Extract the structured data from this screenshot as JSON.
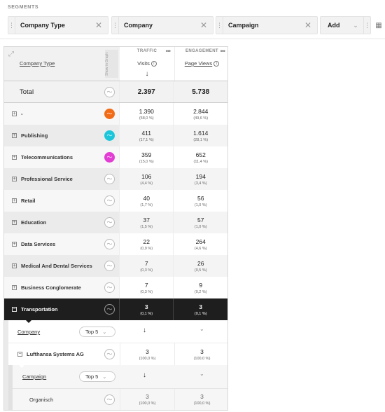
{
  "segments": {
    "title": "SEGMENTS",
    "items": [
      {
        "label": "Company Type"
      },
      {
        "label": "Company"
      },
      {
        "label": "Campaign"
      }
    ],
    "add_label": "Add"
  },
  "table": {
    "dimension_header": "Company Type",
    "vertical_label": "Show in Graph",
    "metrics": [
      {
        "group": "TRAFFIC",
        "name": "Visits"
      },
      {
        "group": "ENGAGEMENT",
        "name": "Page Views"
      }
    ],
    "total": {
      "label": "Total",
      "visits": "2.397",
      "pageviews": "5.738"
    },
    "rows": [
      {
        "label": "-",
        "visits": "1.390",
        "visits_pct": "(58,0 %)",
        "pv": "2.844",
        "pv_pct": "(49,6 %)",
        "color": "#f26b17"
      },
      {
        "label": "Publishing",
        "visits": "411",
        "visits_pct": "(17,1 %)",
        "pv": "1.614",
        "pv_pct": "(28,1 %)",
        "color": "#1cc6da"
      },
      {
        "label": "Telecommunications",
        "visits": "359",
        "visits_pct": "(15,0 %)",
        "pv": "652",
        "pv_pct": "(11,4 %)",
        "color": "#e23ed4"
      },
      {
        "label": "Professional Service",
        "visits": "106",
        "visits_pct": "(4,4 %)",
        "pv": "194",
        "pv_pct": "(3,4 %)"
      },
      {
        "label": "Retail",
        "visits": "40",
        "visits_pct": "(1,7 %)",
        "pv": "56",
        "pv_pct": "(1,0 %)"
      },
      {
        "label": "Education",
        "visits": "37",
        "visits_pct": "(1,5 %)",
        "pv": "57",
        "pv_pct": "(1,0 %)"
      },
      {
        "label": "Data Services",
        "visits": "22",
        "visits_pct": "(0,9 %)",
        "pv": "264",
        "pv_pct": "(4,6 %)"
      },
      {
        "label": "Medical And Dental Services",
        "visits": "7",
        "visits_pct": "(0,3 %)",
        "pv": "26",
        "pv_pct": "(0,5 %)"
      },
      {
        "label": "Business Conglomerate",
        "visits": "7",
        "visits_pct": "(0,3 %)",
        "pv": "9",
        "pv_pct": "(0,2 %)"
      },
      {
        "label": "Transportation",
        "visits": "3",
        "visits_pct": "(0,1 %)",
        "pv": "3",
        "pv_pct": "(0,1 %)"
      }
    ],
    "sub1": {
      "dimension": "Company",
      "limit": "Top 5",
      "row": {
        "label": "Lufthansa Systems AG",
        "visits": "3",
        "visits_pct": "(100,0 %)",
        "pv": "3",
        "pv_pct": "(100,0 %)"
      }
    },
    "sub2": {
      "dimension": "Campaign",
      "limit": "Top 5",
      "row": {
        "label": "Organisch",
        "visits": "3",
        "visits_pct": "(100,0 %)",
        "pv": "3",
        "pv_pct": "(100,0 %)"
      }
    }
  }
}
